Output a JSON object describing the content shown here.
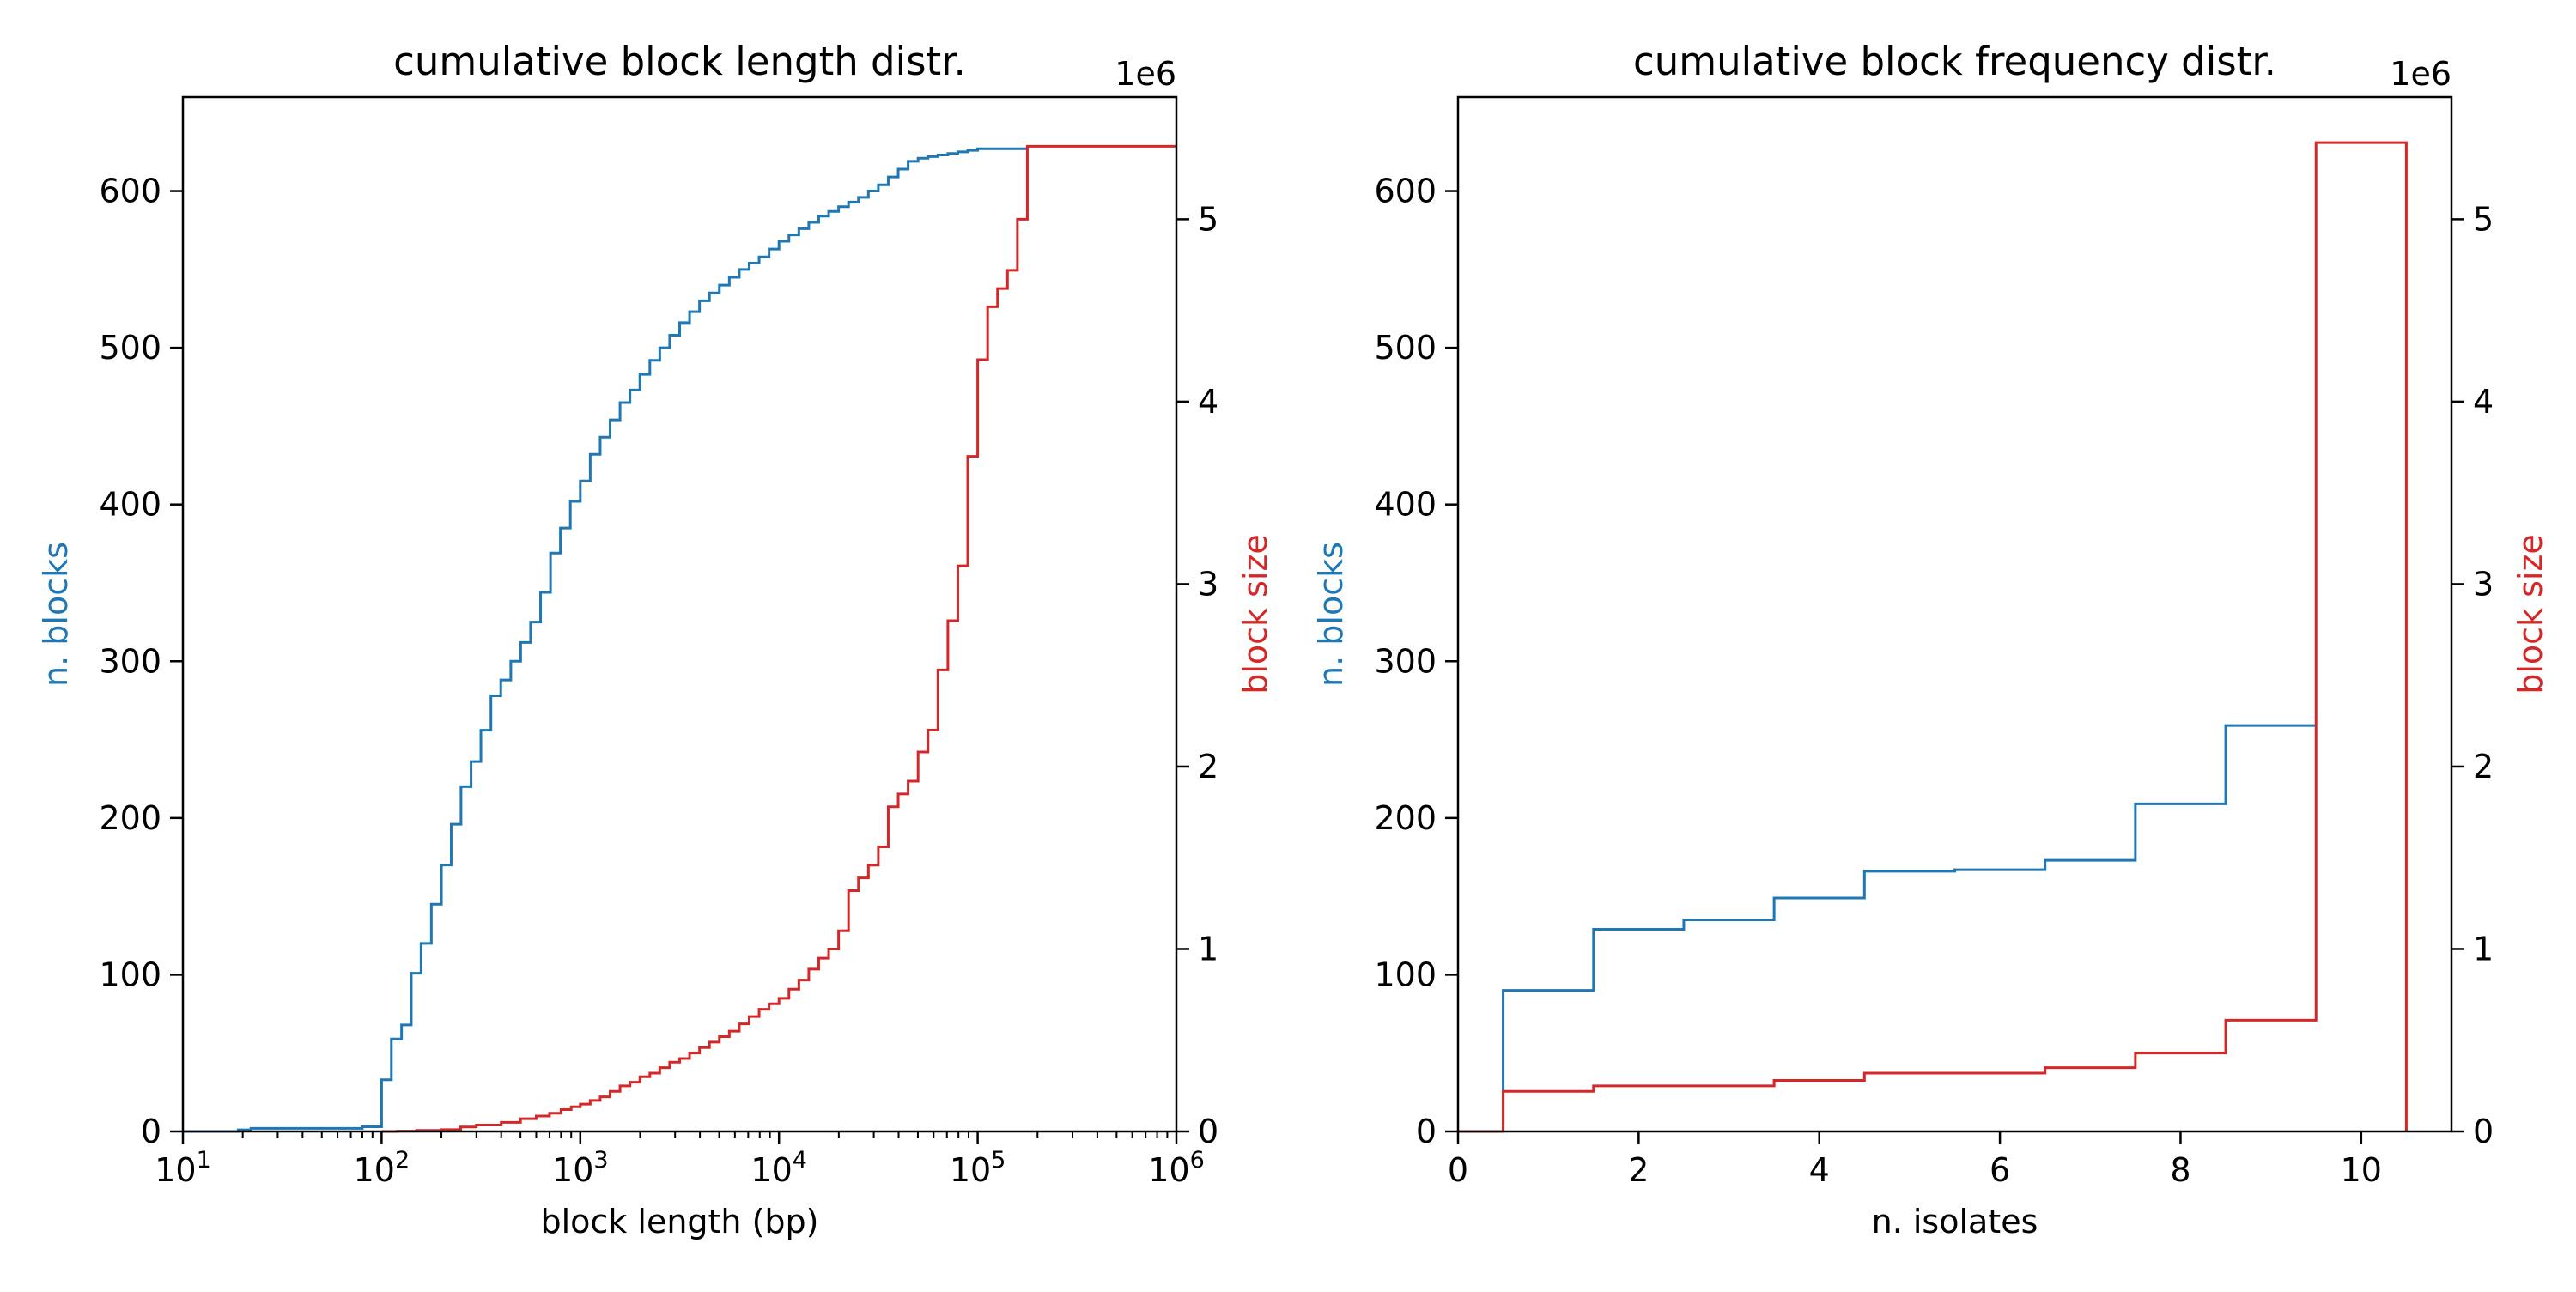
{
  "colors": {
    "blocks": "#1f77b4",
    "size": "#d62728",
    "axis": "#000000",
    "text": "#000000"
  },
  "chart_data": [
    {
      "type": "line",
      "drawstyle": "step-post",
      "title": "cumulative block length distr.",
      "xlabel": "block length (bp)",
      "xscale": "log",
      "xlim": [
        10,
        1000000
      ],
      "xticks": [
        10,
        100,
        1000,
        10000,
        100000,
        1000000
      ],
      "xtick_labels": [
        {
          "base": "10",
          "exp": "1"
        },
        {
          "base": "10",
          "exp": "2"
        },
        {
          "base": "10",
          "exp": "3"
        },
        {
          "base": "10",
          "exp": "4"
        },
        {
          "base": "10",
          "exp": "5"
        },
        {
          "base": "10",
          "exp": "6"
        }
      ],
      "ylabel_left": "n. blocks",
      "ylim_left": [
        0,
        660
      ],
      "yticks_left": [
        0,
        100,
        200,
        300,
        400,
        500,
        600
      ],
      "ylabel_right": "block size",
      "ylim_right": [
        0,
        5.67
      ],
      "yticks_right": [
        0,
        1,
        2,
        3,
        4,
        5
      ],
      "right_axis_multiplier": "1e6",
      "grid": false,
      "series": [
        {
          "axis": "left",
          "color_key": "blocks",
          "points": [
            [
              10,
              0
            ],
            [
              19,
              1
            ],
            [
              22,
              2
            ],
            [
              75,
              2
            ],
            [
              80,
              3
            ],
            [
              100,
              33
            ],
            [
              112,
              59
            ],
            [
              126,
              68
            ],
            [
              141,
              101
            ],
            [
              158,
              120
            ],
            [
              178,
              145
            ],
            [
              200,
              170
            ],
            [
              224,
              196
            ],
            [
              251,
              220
            ],
            [
              282,
              236
            ],
            [
              316,
              256
            ],
            [
              355,
              278
            ],
            [
              398,
              288
            ],
            [
              447,
              300
            ],
            [
              501,
              312
            ],
            [
              562,
              325
            ],
            [
              631,
              344
            ],
            [
              708,
              369
            ],
            [
              794,
              385
            ],
            [
              891,
              402
            ],
            [
              1000,
              415
            ],
            [
              1122,
              432
            ],
            [
              1259,
              443
            ],
            [
              1413,
              454
            ],
            [
              1585,
              465
            ],
            [
              1778,
              473
            ],
            [
              1995,
              483
            ],
            [
              2239,
              492
            ],
            [
              2512,
              500
            ],
            [
              2818,
              508
            ],
            [
              3162,
              516
            ],
            [
              3548,
              523
            ],
            [
              3981,
              530
            ],
            [
              4467,
              535
            ],
            [
              5012,
              540
            ],
            [
              5623,
              545
            ],
            [
              6310,
              550
            ],
            [
              7079,
              554
            ],
            [
              7943,
              558
            ],
            [
              8913,
              563
            ],
            [
              10000,
              568
            ],
            [
              11220,
              572
            ],
            [
              12589,
              576
            ],
            [
              14125,
              580
            ],
            [
              15849,
              584
            ],
            [
              17783,
              587
            ],
            [
              19953,
              590
            ],
            [
              22387,
              593
            ],
            [
              25119,
              596
            ],
            [
              28184,
              600
            ],
            [
              31623,
              604
            ],
            [
              35481,
              609
            ],
            [
              39811,
              614
            ],
            [
              44668,
              619
            ],
            [
              50119,
              621
            ],
            [
              56234,
              622
            ],
            [
              63096,
              623
            ],
            [
              70795,
              624
            ],
            [
              79433,
              625
            ],
            [
              89125,
              626
            ],
            [
              100000,
              627
            ],
            [
              180000,
              627
            ]
          ]
        },
        {
          "axis": "right",
          "color_key": "size",
          "points": [
            [
              100,
              0
            ],
            [
              120,
              0.002
            ],
            [
              150,
              0.006
            ],
            [
              200,
              0.01
            ],
            [
              250,
              0.025
            ],
            [
              300,
              0.035
            ],
            [
              400,
              0.05
            ],
            [
              500,
              0.07
            ],
            [
              600,
              0.085
            ],
            [
              700,
              0.1
            ],
            [
              800,
              0.12
            ],
            [
              900,
              0.135
            ],
            [
              1000,
              0.15
            ],
            [
              1122,
              0.17
            ],
            [
              1259,
              0.19
            ],
            [
              1413,
              0.22
            ],
            [
              1585,
              0.25
            ],
            [
              1778,
              0.27
            ],
            [
              1995,
              0.3
            ],
            [
              2239,
              0.32
            ],
            [
              2512,
              0.35
            ],
            [
              2818,
              0.38
            ],
            [
              3162,
              0.4
            ],
            [
              3548,
              0.43
            ],
            [
              3981,
              0.46
            ],
            [
              4467,
              0.49
            ],
            [
              5012,
              0.52
            ],
            [
              5623,
              0.55
            ],
            [
              6310,
              0.59
            ],
            [
              7079,
              0.63
            ],
            [
              7943,
              0.67
            ],
            [
              8913,
              0.7
            ],
            [
              10000,
              0.73
            ],
            [
              11220,
              0.78
            ],
            [
              12589,
              0.83
            ],
            [
              14125,
              0.89
            ],
            [
              15849,
              0.95
            ],
            [
              17783,
              1.0
            ],
            [
              19953,
              1.1
            ],
            [
              22387,
              1.32
            ],
            [
              25119,
              1.39
            ],
            [
              28184,
              1.46
            ],
            [
              31623,
              1.56
            ],
            [
              35481,
              1.78
            ],
            [
              39811,
              1.85
            ],
            [
              44668,
              1.92
            ],
            [
              50119,
              2.08
            ],
            [
              56234,
              2.2
            ],
            [
              63096,
              2.53
            ],
            [
              70795,
              2.8
            ],
            [
              79433,
              3.1
            ],
            [
              89125,
              3.7
            ],
            [
              100000,
              4.23
            ],
            [
              112202,
              4.52
            ],
            [
              125893,
              4.62
            ],
            [
              141254,
              4.72
            ],
            [
              158489,
              5.0
            ],
            [
              177828,
              5.4
            ],
            [
              1000000,
              5.4
            ]
          ]
        }
      ]
    },
    {
      "type": "line",
      "drawstyle": "step-post",
      "title": "cumulative block frequency distr.",
      "xlabel": "n. isolates",
      "xscale": "linear",
      "xlim": [
        0,
        11
      ],
      "xticks": [
        0,
        2,
        4,
        6,
        8,
        10
      ],
      "xtick_labels": [
        "0",
        "2",
        "4",
        "6",
        "8",
        "10"
      ],
      "ylabel_left": "n. blocks",
      "ylim_left": [
        0,
        660
      ],
      "yticks_left": [
        0,
        100,
        200,
        300,
        400,
        500,
        600
      ],
      "ylabel_right": "block size",
      "ylim_right": [
        0,
        5.67
      ],
      "yticks_right": [
        0,
        1,
        2,
        3,
        4,
        5
      ],
      "right_axis_multiplier": "1e6",
      "grid": false,
      "series": [
        {
          "axis": "left",
          "color_key": "blocks",
          "points": [
            [
              0,
              0
            ],
            [
              0.5,
              90
            ],
            [
              1.5,
              129
            ],
            [
              2.5,
              135
            ],
            [
              3.5,
              149
            ],
            [
              4.5,
              166
            ],
            [
              5.5,
              167
            ],
            [
              6.5,
              173
            ],
            [
              7.5,
              209
            ],
            [
              8.5,
              259
            ],
            [
              9.5,
              259
            ]
          ]
        },
        {
          "axis": "right",
          "color_key": "size",
          "points": [
            [
              0,
              0
            ],
            [
              0.5,
              0.22
            ],
            [
              1.5,
              0.25
            ],
            [
              2.5,
              0.25
            ],
            [
              3.5,
              0.28
            ],
            [
              4.5,
              0.32
            ],
            [
              5.5,
              0.32
            ],
            [
              6.5,
              0.35
            ],
            [
              7.5,
              0.43
            ],
            [
              8.5,
              0.61
            ],
            [
              9.5,
              5.42
            ],
            [
              10.5,
              0
            ]
          ]
        }
      ]
    }
  ]
}
